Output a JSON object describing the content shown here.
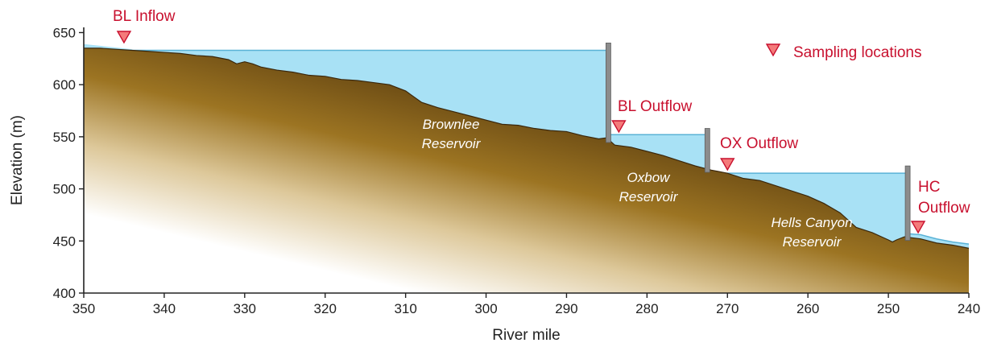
{
  "chart_data": {
    "type": "area",
    "xlabel": "River mile",
    "ylabel": "Elevation (m)",
    "xlim": [
      350,
      240
    ],
    "ylim": [
      400,
      655
    ],
    "x_ticks": [
      350,
      340,
      330,
      320,
      310,
      300,
      290,
      280,
      270,
      260,
      250,
      240
    ],
    "y_ticks": [
      400,
      450,
      500,
      550,
      600,
      650
    ],
    "riverbed_profile": {
      "x": [
        350,
        348,
        346,
        344,
        342,
        340,
        338,
        336,
        334,
        332,
        331,
        330,
        329,
        328,
        326,
        324,
        322,
        320,
        318,
        316,
        314,
        312,
        310,
        308,
        306,
        304,
        302,
        300,
        298,
        296,
        294,
        292,
        290,
        288,
        286,
        285,
        284,
        282,
        280,
        278,
        276,
        274,
        272,
        270,
        268,
        266,
        264,
        262,
        260,
        258,
        256,
        254,
        252,
        250,
        249.5,
        249,
        248,
        247,
        246,
        244,
        242,
        240
      ],
      "y": [
        635,
        635,
        634,
        633,
        632,
        631,
        630,
        628,
        627,
        624,
        620,
        622,
        620,
        617,
        614,
        612,
        609,
        608,
        605,
        604,
        602,
        600,
        594,
        583,
        578,
        574,
        570,
        566,
        562,
        561,
        558,
        556,
        555,
        551,
        548,
        549,
        542,
        540,
        536,
        532,
        527,
        522,
        518,
        515,
        510,
        508,
        503,
        498,
        493,
        486,
        477,
        463,
        458,
        451,
        449,
        451,
        454,
        453,
        452,
        448,
        446,
        443
      ]
    },
    "reservoirs": [
      {
        "name": "Brownlee Reservoir",
        "label_lines": [
          "Brownlee",
          "Reservoir"
        ],
        "water_surface": 633,
        "from_mile": 350,
        "dam_mile": 284.8,
        "dam_top": 640
      },
      {
        "name": "Oxbow Reservoir",
        "label_lines": [
          "Oxbow",
          "Reservoir"
        ],
        "water_surface": 552,
        "from_mile": 284.8,
        "dam_mile": 272.5,
        "dam_top": 558
      },
      {
        "name": "Hells Canyon Reservoir",
        "label_lines": [
          "Hells Canyon",
          "Reservoir"
        ],
        "water_surface": 515,
        "from_mile": 272.5,
        "dam_mile": 247.6,
        "dam_top": 522
      }
    ],
    "sampling_locations": [
      {
        "name": "BL Inflow",
        "label_lines": [
          "BL Inflow"
        ],
        "mile": 345
      },
      {
        "name": "BL Outflow",
        "label_lines": [
          "BL Outflow"
        ],
        "mile": 283.5
      },
      {
        "name": "OX Outflow",
        "label_lines": [
          "OX Outflow"
        ],
        "mile": 270
      },
      {
        "name": "HC Outflow",
        "label_lines": [
          "HC",
          "Outflow"
        ],
        "mile": 246.3
      }
    ],
    "legend": {
      "label": "Sampling locations",
      "placement": "top-right"
    },
    "colors": {
      "water": "#a8e1f5",
      "water_line": "#5ab2d6",
      "ground_dark": "#4a3311",
      "ground_mid": "#8f6a1c",
      "ground_fade": "#ffffff",
      "dam": "#8c8c8c",
      "marker_fill": "#f47a7a",
      "marker_stroke": "#c8102e",
      "axis": "#222222"
    }
  }
}
